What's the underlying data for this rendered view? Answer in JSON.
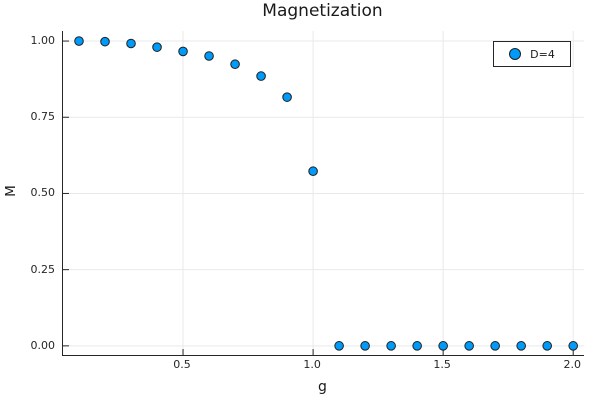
{
  "chart_data": {
    "type": "scatter",
    "title": "Magnetization",
    "xlabel": "g",
    "ylabel": "M",
    "grid": true,
    "xlim": [
      0.0385,
      2.0415
    ],
    "ylim": [
      -0.03,
      1.033
    ],
    "xticks": {
      "values": [
        0.5,
        1.0,
        1.5,
        2.0
      ],
      "labels": [
        "0.5",
        "1.0",
        "1.5",
        "2.0"
      ]
    },
    "yticks": {
      "values": [
        0.0,
        0.25,
        0.5,
        0.75,
        1.0
      ],
      "labels": [
        "0.00",
        "0.25",
        "0.50",
        "0.75",
        "1.00"
      ]
    },
    "legend": {
      "position": "top-right",
      "entries": [
        {
          "label": "D=4",
          "marker": "circle",
          "marker_color": "#009AFA"
        }
      ]
    },
    "series": [
      {
        "name": "D=4",
        "x": [
          0.1,
          0.2,
          0.3,
          0.4,
          0.5,
          0.6,
          0.7,
          0.8,
          0.9,
          1.0,
          1.1,
          1.2,
          1.3,
          1.4,
          1.5,
          1.6,
          1.7,
          1.8,
          1.9,
          2.0
        ],
        "y": [
          1.0,
          0.998,
          0.992,
          0.98,
          0.966,
          0.951,
          0.924,
          0.885,
          0.816,
          0.573,
          0.0,
          0.0,
          0.0,
          0.0,
          0.0,
          0.0,
          0.0,
          0.0,
          0.0,
          0.0
        ]
      }
    ],
    "colors": {
      "marker_fill": "#009AFA",
      "marker_stroke": "#1f1f1f",
      "gridline": "#e9e9e9",
      "axis": "#262626",
      "text": "#1a1a1a",
      "background": "#ffffff"
    }
  }
}
